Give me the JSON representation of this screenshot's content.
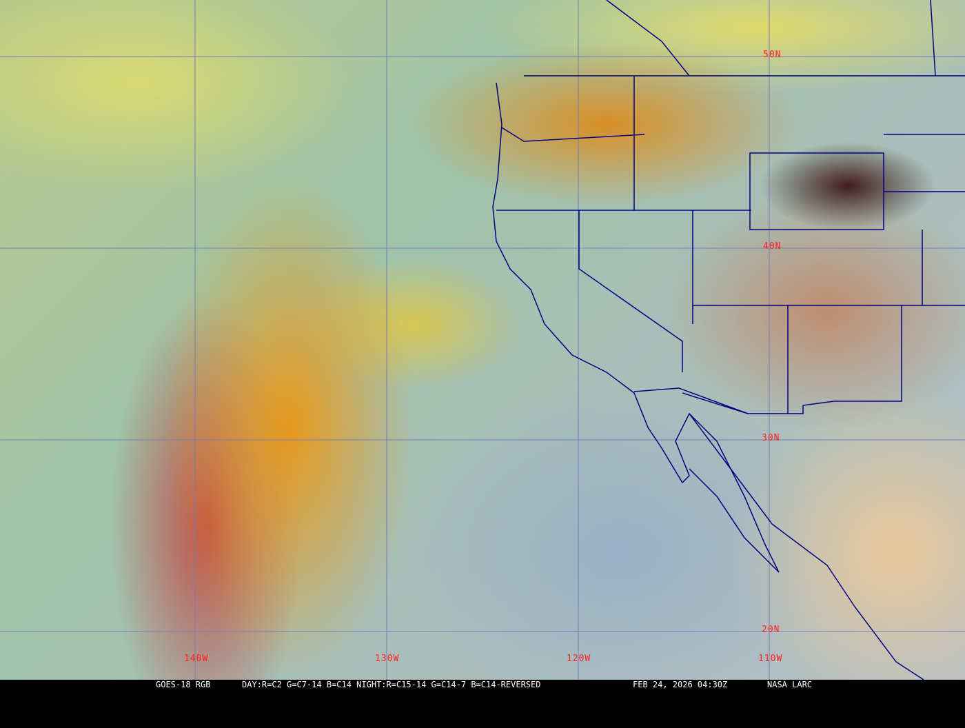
{
  "map": {
    "latitude_labels": [
      "50N",
      "40N",
      "30N",
      "20N"
    ],
    "longitude_labels": [
      "140W",
      "130W",
      "120W",
      "110W"
    ],
    "colors": {
      "gridline": "#7a7ab0",
      "borders": "#000080",
      "labels": "#ff2020"
    }
  },
  "caption": {
    "satellite": "GOES-18 RGB",
    "product": "DAY:R=C2 G=C7-14 B=C14 NIGHT:R=C15-14 G=C14-7 B=C14-REVERSED",
    "timestamp": "FEB 24, 2026 04:30Z",
    "credit": "NASA LARC"
  }
}
